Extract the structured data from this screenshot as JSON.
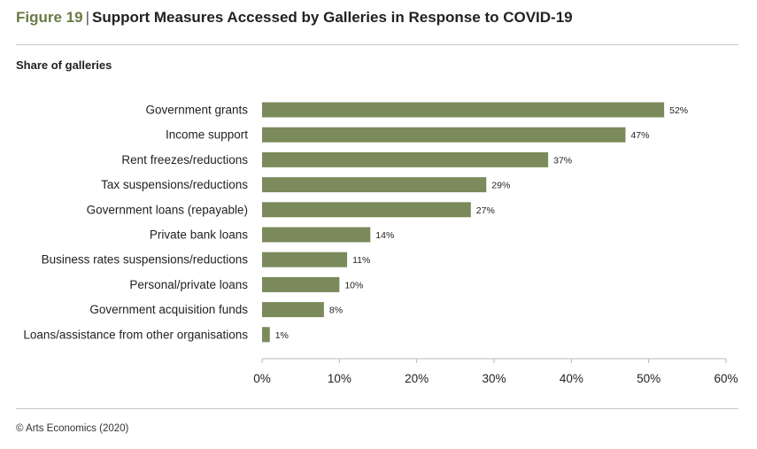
{
  "figure": {
    "label": "Figure 19",
    "separator": "|",
    "title": "Support Measures Accessed by Galleries in Response to COVID-19"
  },
  "subtitle": "Share of galleries",
  "footer": "© Arts Economics (2020)",
  "colors": {
    "bar": "#7a8a5a",
    "accent": "#6b7a45",
    "axis": "#bbbbbb"
  },
  "chart_data": {
    "type": "bar",
    "orientation": "horizontal",
    "categories": [
      "Government grants",
      "Income support",
      "Rent freezes/reductions",
      "Tax suspensions/reductions",
      "Government loans (repayable)",
      "Private bank loans",
      "Business rates suspensions/reductions",
      "Personal/private loans",
      "Government acquisition funds",
      "Loans/assistance from other organisations"
    ],
    "values": [
      52,
      47,
      37,
      29,
      27,
      14,
      11,
      10,
      8,
      1
    ],
    "value_labels": [
      "52%",
      "47%",
      "37%",
      "29%",
      "27%",
      "14%",
      "11%",
      "10%",
      "8%",
      "1%"
    ],
    "xlim": [
      0,
      60
    ],
    "xticks": [
      0,
      10,
      20,
      30,
      40,
      50,
      60
    ],
    "xtick_labels": [
      "0%",
      "10%",
      "20%",
      "30%",
      "40%",
      "50%",
      "60%"
    ],
    "grid": false,
    "legend": "none"
  }
}
